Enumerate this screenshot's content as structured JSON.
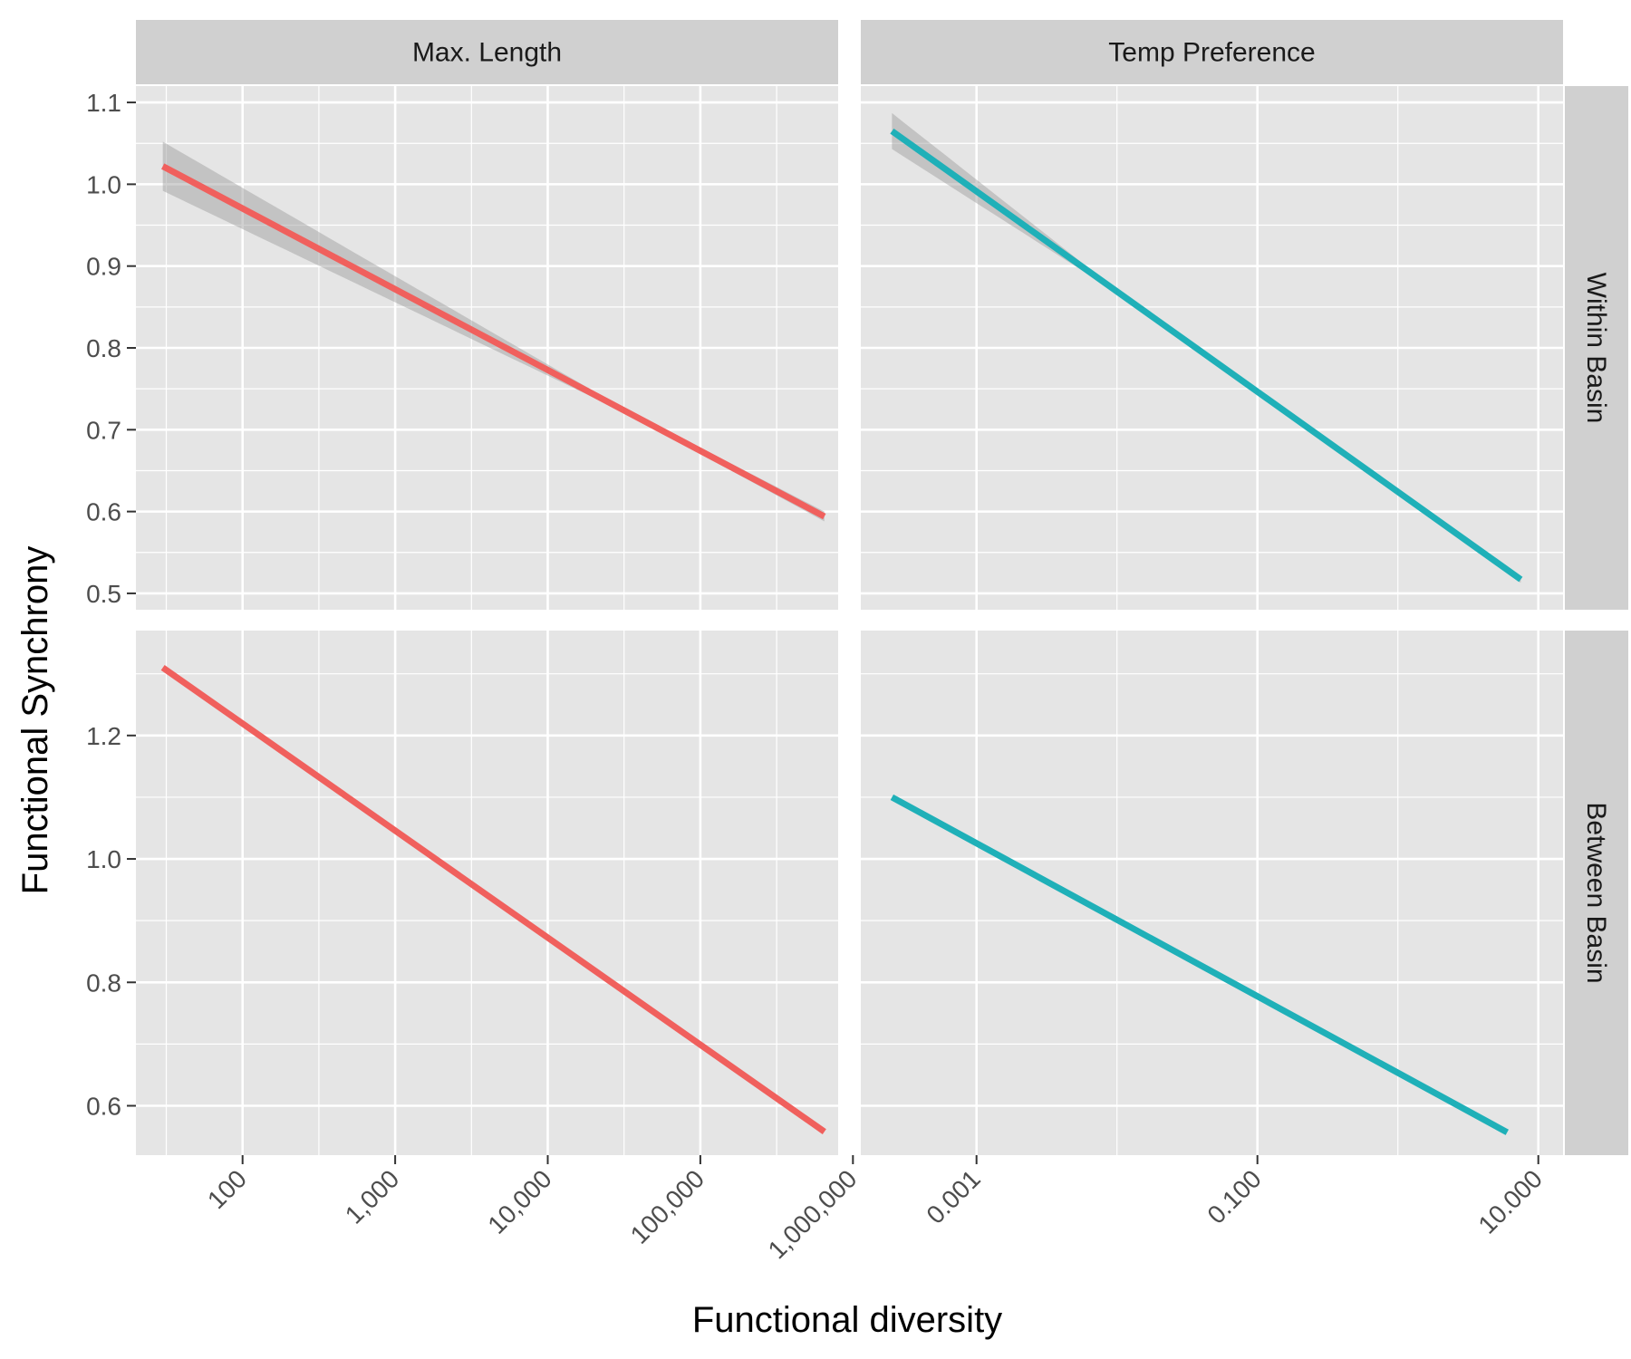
{
  "chart_data": {
    "type": "line",
    "xlabel": "Functional diversity",
    "ylabel": "Functional Synchrony",
    "x_scale": "log10",
    "colors": {
      "max_length": "#F0605D",
      "temp_preference": "#1FB0B8",
      "ribbon": "#999999",
      "panel_bg": "#E5E5E5",
      "strip_bg": "#D0D0D0",
      "grid": "#FFFFFF"
    },
    "columns": [
      {
        "label": "Max. Length",
        "xlim": [
          20,
          800000
        ],
        "ticks": [
          100,
          1000,
          10000,
          100000,
          1000000
        ],
        "tick_labels": [
          "100",
          "1,000",
          "10,000",
          "100,000",
          "1,000,000"
        ]
      },
      {
        "label": "Temp Preference",
        "xlim": [
          0.00015,
          15
        ],
        "ticks": [
          0.001,
          0.1,
          10
        ],
        "tick_labels": [
          "0.001",
          "0.100",
          "10.000"
        ]
      }
    ],
    "rows": [
      {
        "label": "Within Basin",
        "ylim": [
          0.48,
          1.12
        ],
        "ticks": [
          0.5,
          0.6,
          0.7,
          0.8,
          0.9,
          1.0,
          1.1
        ],
        "tick_labels": [
          "0.5",
          "0.6",
          "0.7",
          "0.8",
          "0.9",
          "1.0",
          "1.1"
        ]
      },
      {
        "label": "Between Basin",
        "ylim": [
          0.52,
          1.37
        ],
        "ticks": [
          0.6,
          0.8,
          1.0,
          1.2
        ],
        "tick_labels": [
          "0.6",
          "0.8",
          "1.0",
          "1.2"
        ]
      }
    ],
    "panels": [
      {
        "row": 0,
        "col": 0,
        "color_key": "max_length",
        "x": [
          30,
          650000
        ],
        "y": [
          1.022,
          0.594
        ],
        "ci_halfwidth": [
          0.03,
          0.006
        ],
        "ci_min_x": 30000
      },
      {
        "row": 0,
        "col": 1,
        "color_key": "temp_preference",
        "x": [
          0.00025,
          7.5
        ],
        "y": [
          1.065,
          0.517
        ],
        "ci_halfwidth": [
          0.022,
          0.004
        ],
        "ci_min_x": 0.01
      },
      {
        "row": 1,
        "col": 0,
        "color_key": "max_length",
        "x": [
          30,
          650000
        ],
        "y": [
          1.31,
          0.558
        ],
        "ci_halfwidth": [
          0,
          0
        ],
        "ci_min_x": 30
      },
      {
        "row": 1,
        "col": 1,
        "color_key": "temp_preference",
        "x": [
          0.00025,
          6
        ],
        "y": [
          1.1,
          0.557
        ],
        "ci_halfwidth": [
          0,
          0
        ],
        "ci_min_x": 0.00025
      }
    ]
  }
}
